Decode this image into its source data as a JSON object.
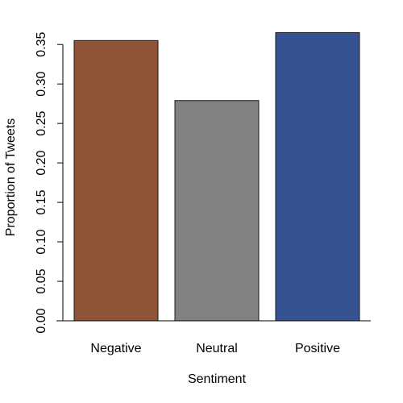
{
  "chart_data": {
    "type": "bar",
    "title": "",
    "xlabel": "Sentiment",
    "ylabel": "Proportion of Tweets",
    "categories": [
      "Negative",
      "Neutral",
      "Positive"
    ],
    "values": [
      0.355,
      0.279,
      0.365
    ],
    "colors": [
      "#8f5336",
      "#808282",
      "#355393"
    ],
    "bar_border_color": "#1a1a1a",
    "ylim": [
      0,
      0.365
    ],
    "yticks": [
      0.0,
      0.05,
      0.1,
      0.15,
      0.2,
      0.25,
      0.3,
      0.35
    ],
    "ytick_labels": [
      "0.00",
      "0.05",
      "0.10",
      "0.15",
      "0.20",
      "0.25",
      "0.30",
      "0.35"
    ],
    "grid": false,
    "legend": "none"
  }
}
